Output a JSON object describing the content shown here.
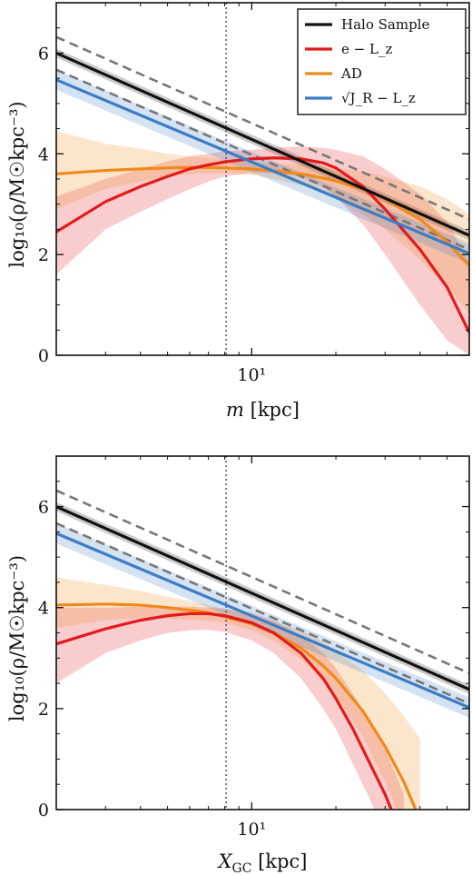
{
  "chart_data": [
    {
      "type": "line",
      "xscale": "log",
      "xlim": [
        2.0,
        60.0
      ],
      "ylim": [
        0,
        7
      ],
      "xticks": [
        {
          "value": 10,
          "label": "10¹"
        }
      ],
      "yticks": [
        0,
        2,
        4,
        6
      ],
      "xlabel_main": "m",
      "xlabel_unit": "[kpc]",
      "ylabel": "log₁₀(ρ/M☉kpc⁻³)",
      "vline_x": 8.1,
      "legend": {
        "placement": "top-right",
        "entries": [
          "Halo Sample",
          "e − L_z",
          "AD",
          "√J_R − L_z"
        ]
      },
      "series": [
        {
          "name": "Halo Sample",
          "color": "#111111",
          "x": [
            2,
            60
          ],
          "y": [
            6.0,
            2.38
          ],
          "band": 0.09
        },
        {
          "name": "e − L_z",
          "color": "#e31a1c",
          "x": [
            2,
            3,
            4,
            5,
            6,
            7,
            8,
            10,
            12,
            15,
            18,
            20,
            25,
            30,
            40,
            50,
            60
          ],
          "y": [
            2.45,
            3.05,
            3.35,
            3.55,
            3.7,
            3.78,
            3.84,
            3.9,
            3.92,
            3.9,
            3.82,
            3.72,
            3.35,
            2.9,
            2.1,
            1.35,
            0.45
          ],
          "lower": [
            1.6,
            2.5,
            2.85,
            3.1,
            3.3,
            3.45,
            3.55,
            3.62,
            3.62,
            3.55,
            3.35,
            3.15,
            2.6,
            2.0,
            1.0,
            0.3,
            0.0
          ],
          "upper": [
            3.15,
            3.5,
            3.7,
            3.85,
            3.95,
            4.0,
            4.05,
            4.08,
            4.12,
            4.15,
            4.12,
            4.08,
            3.95,
            3.7,
            3.2,
            2.65,
            1.85
          ]
        },
        {
          "name": "AD",
          "color": "#ef8a1a",
          "x": [
            2,
            3,
            4,
            5,
            6,
            7,
            8,
            10,
            12,
            15,
            18,
            20,
            25,
            30,
            40,
            50,
            60
          ],
          "y": [
            3.6,
            3.67,
            3.7,
            3.72,
            3.73,
            3.73,
            3.72,
            3.7,
            3.66,
            3.6,
            3.52,
            3.46,
            3.3,
            3.1,
            2.7,
            2.25,
            1.78
          ],
          "lower": [
            2.9,
            3.3,
            3.45,
            3.55,
            3.6,
            3.62,
            3.62,
            3.58,
            3.5,
            3.38,
            3.22,
            3.1,
            2.8,
            2.5,
            1.9,
            1.35,
            0.85
          ],
          "upper": [
            4.45,
            4.2,
            4.1,
            4.0,
            3.95,
            3.92,
            3.88,
            3.82,
            3.8,
            3.78,
            3.74,
            3.72,
            3.65,
            3.55,
            3.35,
            3.1,
            2.8
          ]
        },
        {
          "name": "√J_R − L_z",
          "color": "#3b7dc4",
          "x": [
            2,
            60
          ],
          "y": [
            5.47,
            2.02
          ],
          "band": 0.2
        },
        {
          "name": "",
          "color": "#777777",
          "dashed": true,
          "x": [
            2,
            60
          ],
          "y": [
            6.32,
            2.7
          ]
        },
        {
          "name": "",
          "color": "#777777",
          "dashed": true,
          "x": [
            2,
            60
          ],
          "y": [
            5.67,
            2.1
          ]
        }
      ]
    },
    {
      "type": "line",
      "xscale": "log",
      "xlim": [
        2.0,
        60.0
      ],
      "ylim": [
        0,
        7
      ],
      "xticks": [
        {
          "value": 10,
          "label": "10¹"
        }
      ],
      "yticks": [
        0,
        2,
        4,
        6
      ],
      "xlabel_main": "X",
      "xlabel_sub": "GC",
      "xlabel_unit": "[kpc]",
      "ylabel": "log₁₀(ρ/M☉kpc⁻³)",
      "vline_x": 8.1,
      "series": [
        {
          "name": "Halo Sample",
          "color": "#111111",
          "x": [
            2,
            60
          ],
          "y": [
            6.0,
            2.38
          ],
          "band": 0.09
        },
        {
          "name": "e − L_z",
          "color": "#e31a1c",
          "x": [
            2,
            3,
            4,
            5,
            6,
            7,
            8,
            10,
            12,
            15,
            18,
            20,
            23,
            26,
            30,
            35
          ],
          "y": [
            3.28,
            3.58,
            3.75,
            3.84,
            3.88,
            3.88,
            3.84,
            3.7,
            3.5,
            3.1,
            2.6,
            2.2,
            1.6,
            1.0,
            0.3,
            -0.6
          ],
          "lower": [
            2.5,
            3.1,
            3.35,
            3.5,
            3.55,
            3.56,
            3.52,
            3.35,
            3.1,
            2.6,
            2.0,
            1.6,
            0.9,
            0.3,
            -0.5,
            -1.5
          ],
          "upper": [
            4.0,
            4.0,
            4.02,
            4.02,
            4.02,
            4.0,
            3.98,
            3.9,
            3.75,
            3.45,
            3.1,
            2.8,
            2.3,
            1.8,
            1.2,
            0.3
          ]
        },
        {
          "name": "AD",
          "color": "#ef8a1a",
          "x": [
            2,
            3,
            4,
            5,
            6,
            7,
            8,
            10,
            12,
            15,
            18,
            20,
            25,
            30,
            35,
            40
          ],
          "y": [
            4.05,
            4.07,
            4.05,
            4.0,
            3.95,
            3.9,
            3.82,
            3.68,
            3.5,
            3.2,
            2.85,
            2.6,
            1.95,
            1.25,
            0.55,
            -0.2
          ],
          "lower": [
            3.6,
            3.75,
            3.8,
            3.78,
            3.76,
            3.74,
            3.7,
            3.55,
            3.35,
            2.98,
            2.55,
            2.25,
            1.45,
            0.55,
            -0.3,
            -1.1
          ],
          "upper": [
            4.6,
            4.45,
            4.33,
            4.22,
            4.13,
            4.05,
            3.97,
            3.85,
            3.72,
            3.55,
            3.32,
            3.15,
            2.75,
            2.3,
            1.85,
            1.4
          ]
        },
        {
          "name": "√J_R − L_z",
          "color": "#3b7dc4",
          "x": [
            2,
            60
          ],
          "y": [
            5.47,
            2.02
          ],
          "band": 0.2
        },
        {
          "name": "",
          "color": "#777777",
          "dashed": true,
          "x": [
            2,
            60
          ],
          "y": [
            6.32,
            2.7
          ]
        },
        {
          "name": "",
          "color": "#777777",
          "dashed": true,
          "x": [
            2,
            60
          ],
          "y": [
            5.67,
            2.1
          ]
        }
      ]
    }
  ]
}
